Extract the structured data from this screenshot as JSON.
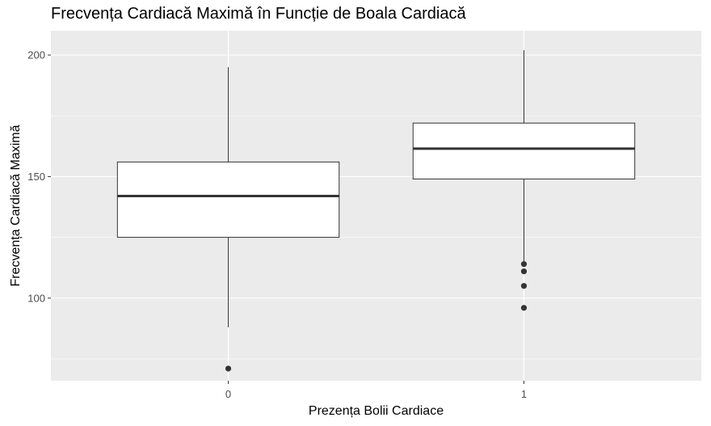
{
  "chart_data": {
    "type": "boxplot",
    "title": "Frecvența Cardiacă Maximă în Funcție de Boala Cardiacă",
    "xlabel": "Prezența Bolii Cardiace",
    "ylabel": "Frecvența Cardiacă Maximă",
    "categories": [
      "0",
      "1"
    ],
    "ylim": [
      66,
      210
    ],
    "yticks": [
      100,
      150,
      200
    ],
    "grid": true,
    "background": "#ebebeb",
    "grid_color": "#ffffff",
    "box_fill": "#ffffff",
    "line_color": "#333333",
    "boxes": [
      {
        "category": "0",
        "whisker_low": 88,
        "q1": 125,
        "median": 142,
        "q3": 156,
        "whisker_high": 195,
        "outliers": [
          71
        ]
      },
      {
        "category": "1",
        "whisker_low": 115,
        "q1": 149,
        "median": 161.5,
        "q3": 172,
        "whisker_high": 202,
        "outliers": [
          114,
          111,
          105,
          96
        ]
      }
    ]
  }
}
